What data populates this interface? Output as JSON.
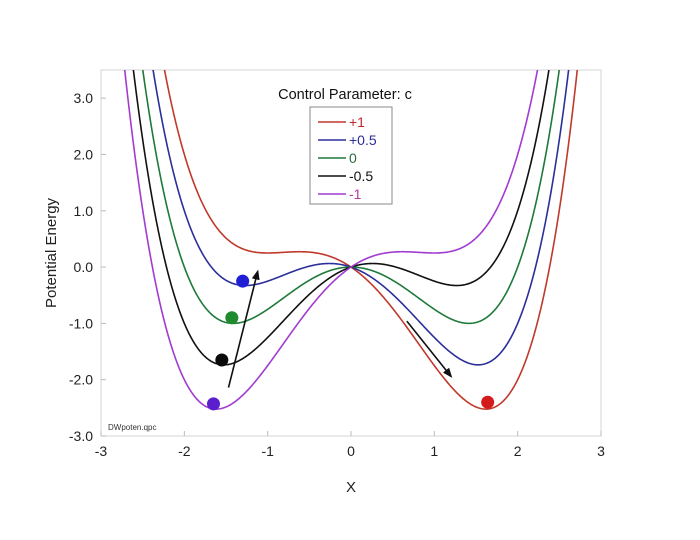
{
  "chart_data": {
    "type": "line",
    "title": "",
    "xlabel": "X",
    "ylabel": "Potential Energy",
    "xlim": [
      -3,
      3
    ],
    "ylim": [
      -3,
      3.5
    ],
    "x_ticks": [
      -3,
      -2,
      -1,
      0,
      1,
      2,
      3
    ],
    "x_tick_labels": [
      "-3",
      "-2",
      "-1",
      "0",
      "1",
      "2",
      "3"
    ],
    "y_ticks": [
      -3,
      -2,
      -1,
      0,
      1,
      2,
      3
    ],
    "y_tick_labels": [
      "-3.0",
      "-2.0",
      "-1.0",
      "0.0",
      "1.0",
      "2.0",
      "3.0"
    ],
    "grid": false,
    "function": "V(x) = 0.25*x^4 - x^2 - c*x",
    "legend": {
      "title": "Control Parameter: c",
      "position": "upper center"
    },
    "series": [
      {
        "name": "+1",
        "c": 1,
        "color": "#c0392b",
        "text_color": "#c0272d"
      },
      {
        "name": "+0.5",
        "c": 0.5,
        "color": "#2b2f9a",
        "text_color": "#2b2f9a"
      },
      {
        "name": "0",
        "c": 0,
        "color": "#1e7a3a",
        "text_color": "#2a6b3c"
      },
      {
        "name": "-0.5",
        "c": -0.5,
        "color": "#111111",
        "text_color": "#111111"
      },
      {
        "name": "-1",
        "c": -1,
        "color": "#a23bd0",
        "text_color": "#b03c9e"
      }
    ],
    "points": [
      {
        "series": "+0.5",
        "x": -1.3,
        "y": -0.25,
        "color": "#1f1fd6"
      },
      {
        "series": "0",
        "x": -1.43,
        "y": -0.9,
        "color": "#1f8a2e"
      },
      {
        "series": "-0.5",
        "x": -1.55,
        "y": -1.65,
        "color": "#0a0a0a"
      },
      {
        "series": "-1",
        "x": -1.65,
        "y": -2.43,
        "color": "#5a1ecf"
      },
      {
        "series": "+1",
        "x": 1.64,
        "y": -2.4,
        "color": "#d41b1b"
      }
    ],
    "annotations": [
      {
        "type": "arrow",
        "from": [
          -1.47,
          -2.14
        ],
        "to": [
          -1.12,
          -0.08
        ]
      },
      {
        "type": "arrow",
        "from": [
          0.67,
          -0.96
        ],
        "to": [
          1.2,
          -1.94
        ]
      },
      {
        "type": "text",
        "text": "DWpoten.qpc",
        "x": -2.9,
        "y": -2.85
      }
    ]
  }
}
